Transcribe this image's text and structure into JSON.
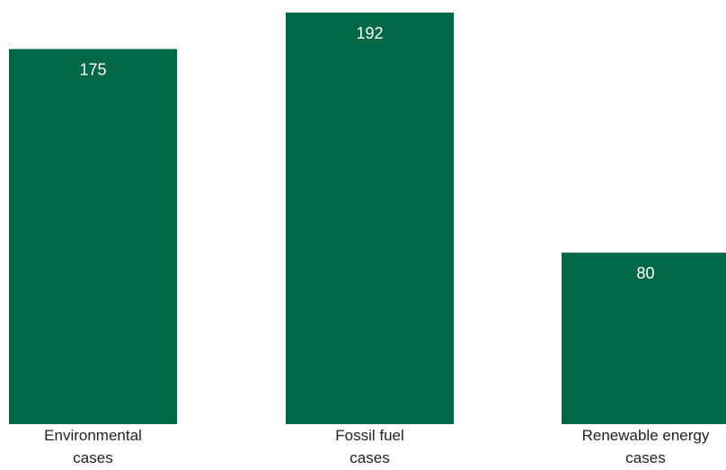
{
  "chart_data": {
    "type": "bar",
    "categories": [
      [
        "Environmental",
        "cases"
      ],
      [
        "Fossil fuel",
        "cases"
      ],
      [
        "Renewable energy",
        "cases"
      ]
    ],
    "values": [
      175,
      192,
      80
    ],
    "ylim": [
      0,
      192
    ],
    "show_value_labels": true,
    "grid": false,
    "legend": "none",
    "bar_color": "#006847",
    "value_label_color": "#ffffff",
    "category_label_color": "#222222"
  }
}
